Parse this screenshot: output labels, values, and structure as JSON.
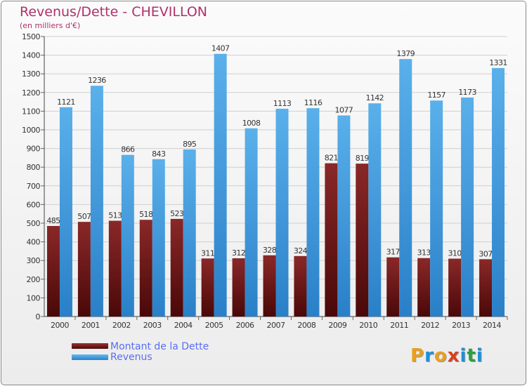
{
  "title": "Revenus/Dette - CHEVILLON",
  "subtitle": "(en milliers d'€)",
  "logo": {
    "letters": [
      "P",
      "r",
      "o",
      "x",
      "i",
      "t",
      "i"
    ],
    "colors": [
      "#e8a020",
      "#1e90d8",
      "#e8a020",
      "#d84020",
      "#1e90d8",
      "#2aa040",
      "#1e90d8"
    ]
  },
  "chart_data": {
    "type": "bar",
    "categories": [
      "2000",
      "2001",
      "2002",
      "2003",
      "2004",
      "2005",
      "2006",
      "2007",
      "2008",
      "2009",
      "2010",
      "2011",
      "2012",
      "2013",
      "2014"
    ],
    "series": [
      {
        "name": "Montant de la Dette",
        "color": "#7a1a1a",
        "values": [
          485,
          507,
          513,
          518,
          523,
          311,
          312,
          328,
          324,
          821,
          819,
          317,
          313,
          310,
          307
        ]
      },
      {
        "name": "Revenus",
        "color": "#4aa0e0",
        "values": [
          1121,
          1236,
          866,
          843,
          895,
          1407,
          1008,
          1113,
          1116,
          1077,
          1142,
          1379,
          1157,
          1173,
          1331
        ]
      }
    ],
    "ylim": [
      0,
      1500
    ],
    "yticks": [
      0,
      100,
      200,
      300,
      400,
      500,
      600,
      700,
      800,
      900,
      1000,
      1100,
      1200,
      1300,
      1400,
      1500
    ],
    "grid": true,
    "legend": "bottom-left"
  }
}
